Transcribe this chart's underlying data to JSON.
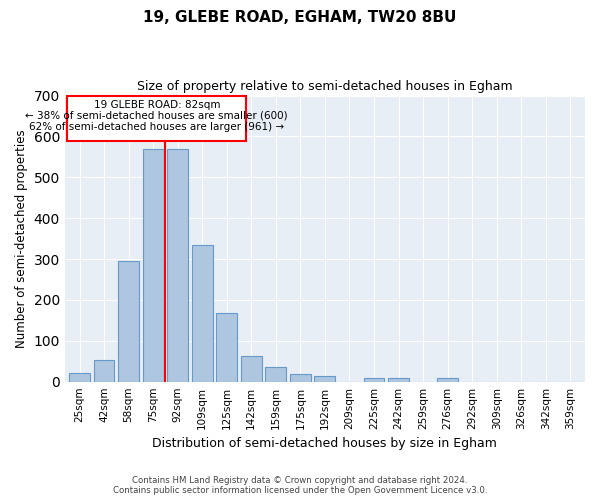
{
  "title1": "19, GLEBE ROAD, EGHAM, TW20 8BU",
  "title2": "Size of property relative to semi-detached houses in Egham",
  "xlabel": "Distribution of semi-detached houses by size in Egham",
  "ylabel": "Number of semi-detached properties",
  "categories": [
    "25sqm",
    "42sqm",
    "58sqm",
    "75sqm",
    "92sqm",
    "109sqm",
    "125sqm",
    "142sqm",
    "159sqm",
    "175sqm",
    "192sqm",
    "209sqm",
    "225sqm",
    "242sqm",
    "259sqm",
    "276sqm",
    "292sqm",
    "309sqm",
    "326sqm",
    "342sqm",
    "359sqm"
  ],
  "values": [
    22,
    53,
    295,
    570,
    570,
    335,
    168,
    62,
    35,
    18,
    15,
    0,
    8,
    8,
    0,
    8,
    0,
    0,
    0,
    0,
    0
  ],
  "bar_color": "#aec6df",
  "bar_edge_color": "#6699cc",
  "background_color": "#e8eef6",
  "red_line_label": "19 GLEBE ROAD: 82sqm",
  "annotation_line1": "← 38% of semi-detached houses are smaller (600)",
  "annotation_line2": "62% of semi-detached houses are larger (961) →",
  "ylim": [
    0,
    700
  ],
  "footer1": "Contains HM Land Registry data © Crown copyright and database right 2024.",
  "footer2": "Contains public sector information licensed under the Open Government Licence v3.0."
}
